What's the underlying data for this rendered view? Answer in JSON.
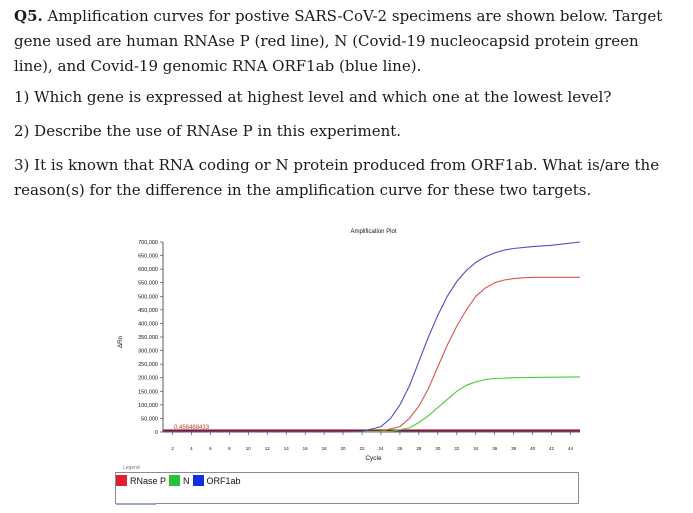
{
  "question": {
    "number": "Q5.",
    "intro": " Amplification curves for postive SARS-CoV-2 specimens are shown below. Target gene used are human RNAse P (red line), N (Covid-19 nucleocapsid protein green line), and Covid-19 genomic RNA ORF1ab (blue line).",
    "items": [
      "1) Which gene is expressed at highest level and which one at the lowest level?",
      "2) Describe the use of RNAse P in this experiment.",
      "3) It is known that RNA coding or N protein produced from ORF1ab. What is/are the reason(s) for the difference in the amplification curve for these two targets."
    ]
  },
  "chart_data": {
    "type": "line",
    "title": "Amplification Plot",
    "xlabel": "Cycle",
    "ylabel": "ΔRn",
    "xlim": [
      1,
      45
    ],
    "ylim": [
      0,
      700000
    ],
    "x_ticks": [
      2,
      4,
      6,
      8,
      10,
      12,
      14,
      16,
      18,
      20,
      22,
      24,
      26,
      28,
      30,
      32,
      34,
      36,
      38,
      40,
      42,
      44
    ],
    "y_ticks": [
      0,
      50000,
      100000,
      150000,
      200000,
      250000,
      300000,
      350000,
      400000,
      450000,
      500000,
      550000,
      600000,
      650000,
      700000
    ],
    "y_tick_labels": [
      "0",
      "50,000",
      "100,000",
      "150,000",
      "200,000",
      "250,000",
      "300,000",
      "350,000",
      "400,000",
      "450,000",
      "500,000",
      "550,000",
      "600,000",
      "650,000",
      "700,000"
    ],
    "grid": false,
    "threshold": 0,
    "overlay_label": "0.456468433",
    "legend_title": "Legend",
    "legend_position": "bottom",
    "series": [
      {
        "name": "RNase P",
        "color": "#d9534f",
        "x": [
          1,
          5,
          10,
          15,
          20,
          24,
          26,
          27,
          28,
          29,
          30,
          31,
          32,
          33,
          34,
          35,
          36,
          37,
          38,
          39,
          40,
          42,
          45
        ],
        "y": [
          0,
          0,
          0,
          0,
          0,
          3000,
          20000,
          50000,
          95000,
          160000,
          240000,
          320000,
          390000,
          450000,
          500000,
          530000,
          550000,
          560000,
          565000,
          568000,
          570000,
          570000,
          570000
        ]
      },
      {
        "name": "N",
        "color": "#4ccd3c",
        "x": [
          1,
          5,
          10,
          15,
          20,
          25,
          27,
          28,
          29,
          30,
          31,
          32,
          33,
          34,
          35,
          36,
          38,
          40,
          42,
          45
        ],
        "y": [
          0,
          0,
          0,
          0,
          0,
          2000,
          15000,
          35000,
          60000,
          90000,
          120000,
          150000,
          172000,
          185000,
          193000,
          197000,
          200000,
          201000,
          202000,
          203000
        ]
      },
      {
        "name": "ORF1ab",
        "color": "#4a4ec8",
        "x": [
          1,
          5,
          10,
          15,
          20,
          22,
          24,
          25,
          26,
          27,
          28,
          29,
          30,
          31,
          32,
          33,
          34,
          35,
          36,
          37,
          38,
          40,
          42,
          45
        ],
        "y": [
          0,
          0,
          0,
          0,
          0,
          2000,
          20000,
          50000,
          100000,
          170000,
          260000,
          350000,
          430000,
          500000,
          555000,
          595000,
          625000,
          645000,
          660000,
          670000,
          676000,
          683000,
          688000,
          700000
        ]
      }
    ]
  }
}
